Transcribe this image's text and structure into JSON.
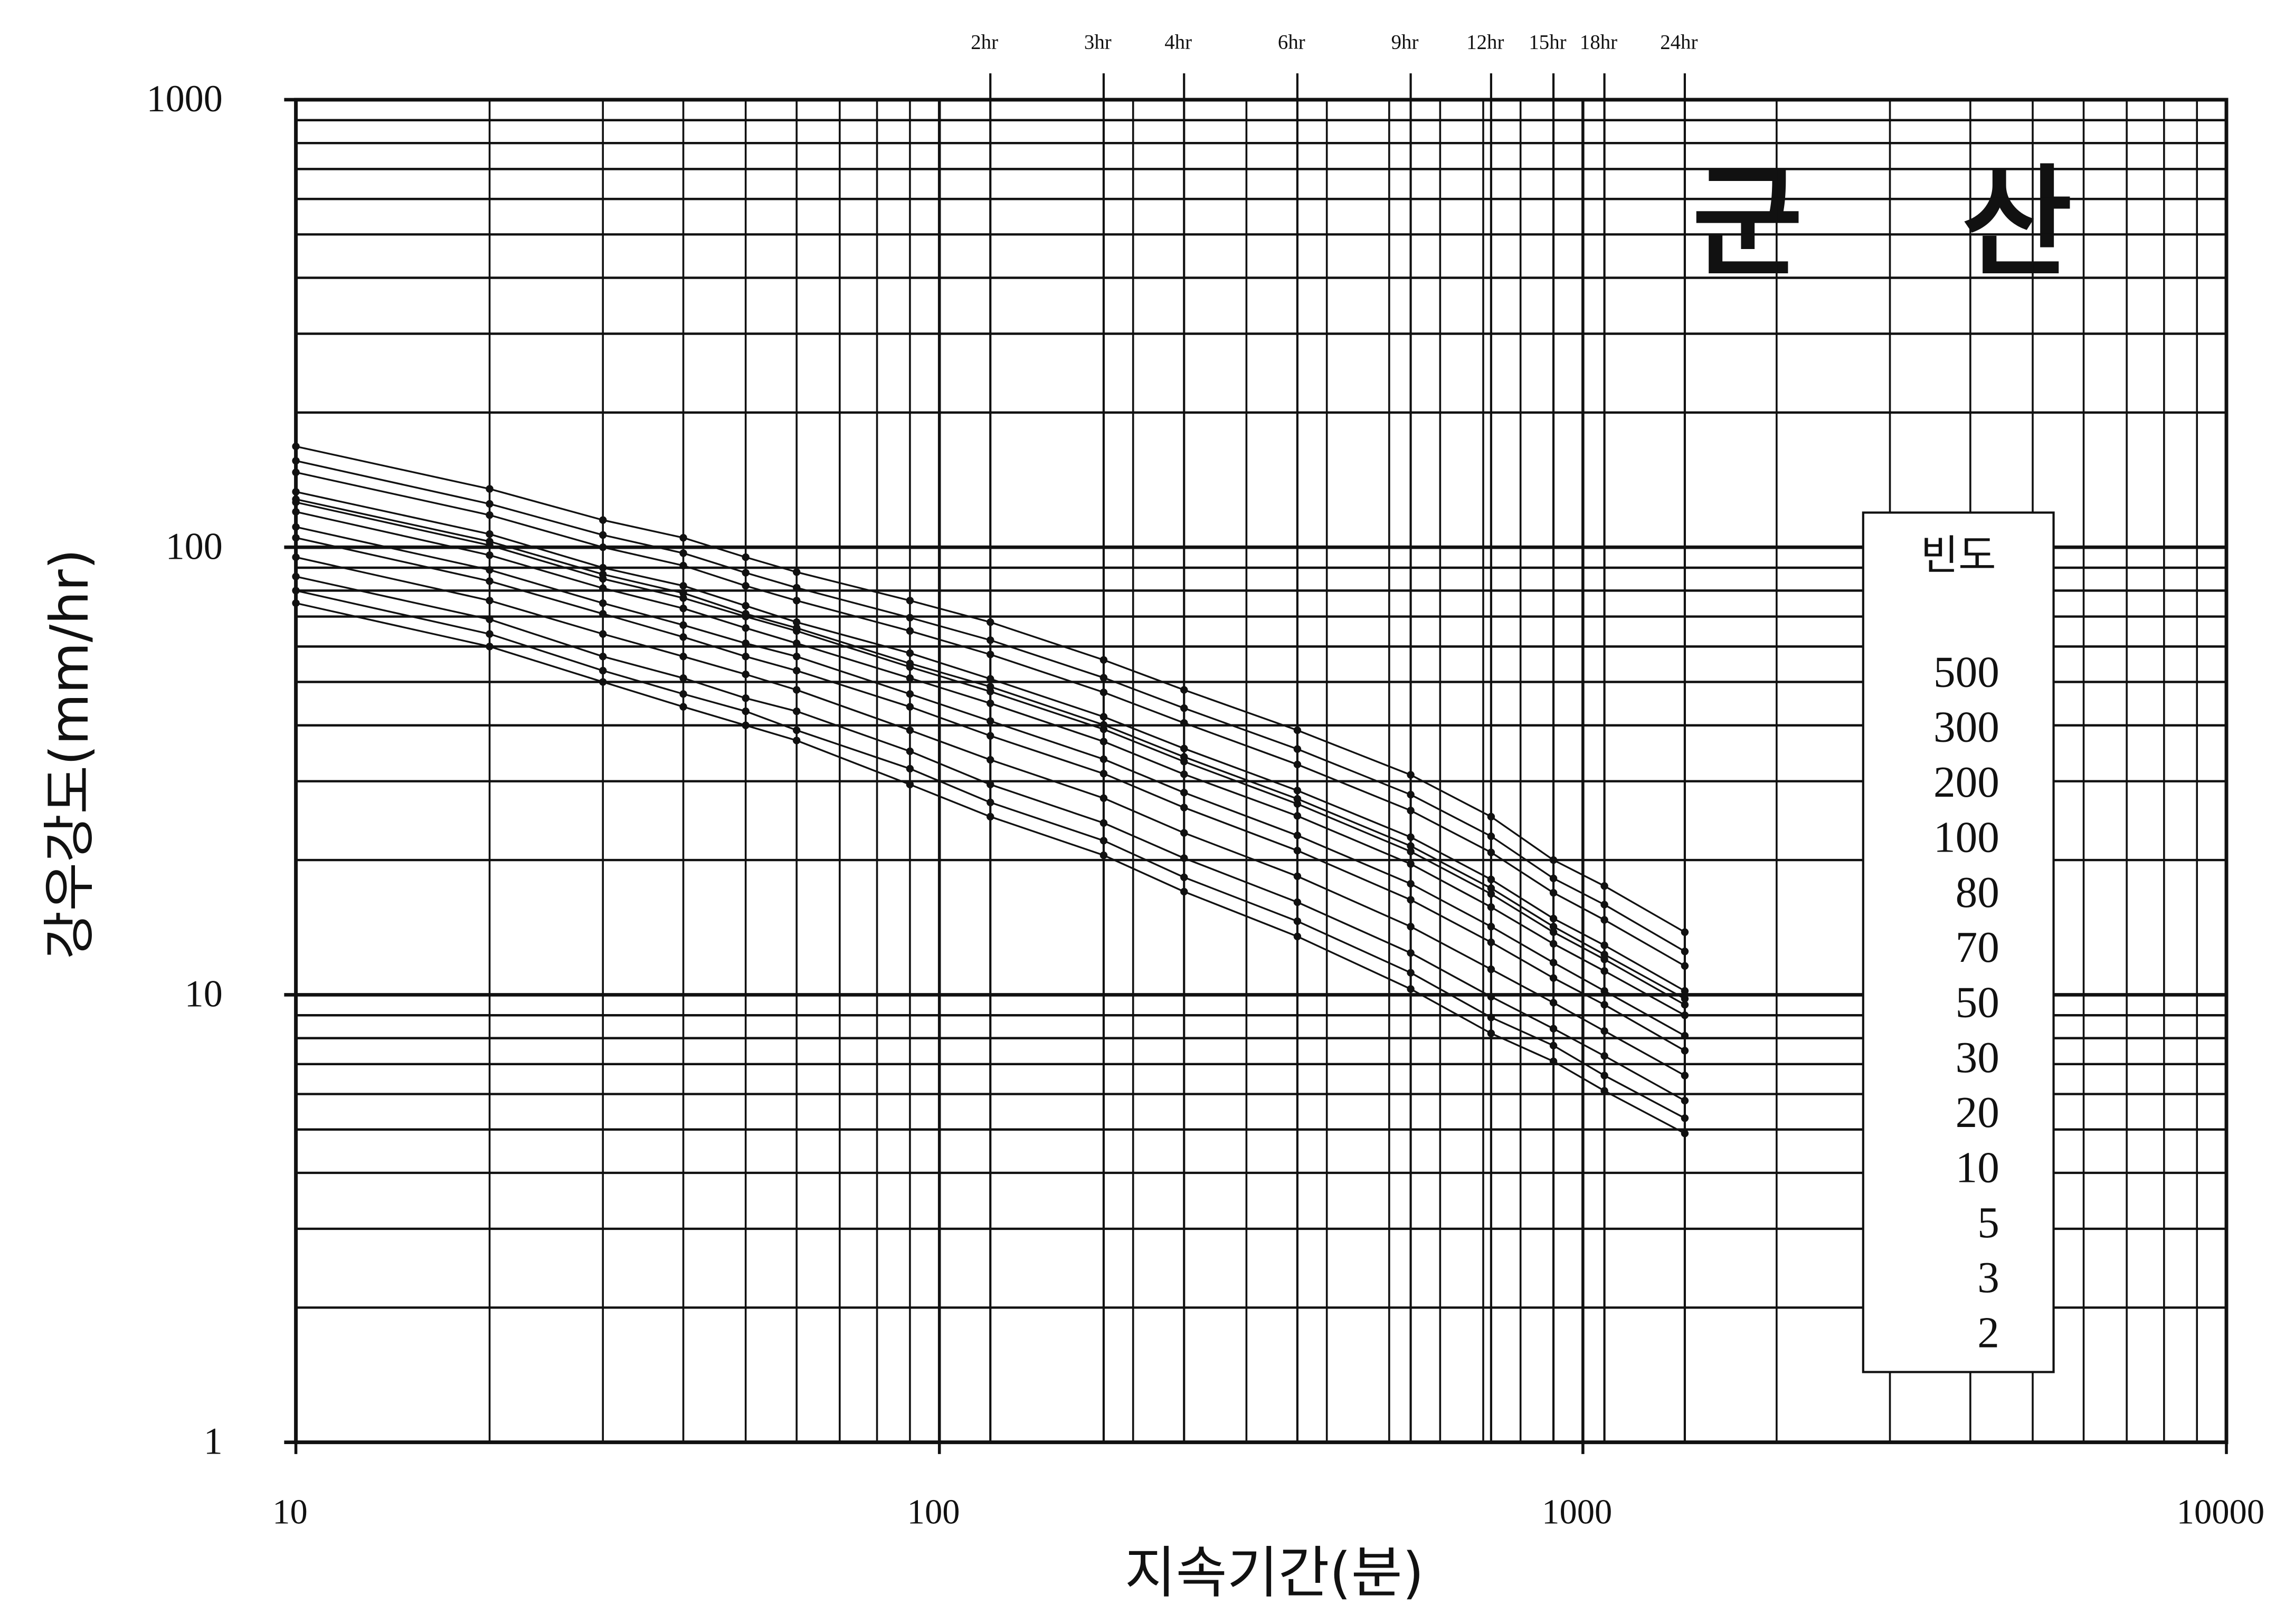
{
  "chart_data": {
    "type": "line",
    "title": "군 산",
    "x_label": "지속기간(분)",
    "y_label": "강우강도(mm/hr)",
    "legend_title": "빈도",
    "x": [
      10,
      20,
      30,
      40,
      50,
      60,
      90,
      120,
      180,
      240,
      360,
      540,
      720,
      900,
      1080,
      1440
    ],
    "xlim": [
      10,
      10000
    ],
    "ylim": [
      1,
      1000
    ],
    "xticks": [
      10,
      100,
      1000,
      10000
    ],
    "yticks": [
      1,
      10,
      100,
      1000
    ],
    "top_ticks": [
      {
        "value": 120,
        "label": "2hr"
      },
      {
        "value": 180,
        "label": "3hr"
      },
      {
        "value": 240,
        "label": "4hr"
      },
      {
        "value": 360,
        "label": "6hr"
      },
      {
        "value": 540,
        "label": "9hr"
      },
      {
        "value": 720,
        "label": "12hr"
      },
      {
        "value": 900,
        "label": "15hr"
      },
      {
        "value": 1080,
        "label": "18hr"
      },
      {
        "value": 1440,
        "label": "24hr"
      }
    ],
    "log_x": true,
    "log_y": true,
    "grid": true,
    "minor_grid": true,
    "legend": "right",
    "series": [
      {
        "name": "500",
        "color": "#111111",
        "values": [
          168,
          135,
          115,
          105,
          95,
          88,
          76,
          68,
          56,
          48,
          39,
          31,
          25,
          20,
          17.5,
          13.8
        ]
      },
      {
        "name": "300",
        "color": "#111111",
        "values": [
          156,
          125,
          106.5,
          97,
          87.7,
          81.2,
          69.6,
          62,
          51.1,
          43.7,
          35.4,
          28,
          22.6,
          18.2,
          15.9,
          12.5
        ]
      },
      {
        "name": "200",
        "color": "#111111",
        "values": [
          147,
          118,
          100,
          91,
          82,
          76,
          65,
          57.6,
          47.4,
          40.5,
          32.7,
          25.8,
          20.8,
          16.9,
          14.7,
          11.6
        ]
      },
      {
        "name": "100",
        "color": "#111111",
        "values": [
          133,
          107,
          90,
          82,
          74,
          68,
          58,
          50.8,
          41.8,
          35.5,
          28.6,
          22.5,
          18.1,
          14.8,
          12.9,
          10.2
        ]
      },
      {
        "name": "80",
        "color": "#111111",
        "values": [
          128,
          103,
          87,
          79,
          71,
          66,
          55,
          48.8,
          40.1,
          34,
          27.4,
          21.5,
          17.3,
          14.2,
          12.3,
          9.8
        ]
      },
      {
        "name": "70",
        "color": "#111111",
        "values": [
          126,
          101,
          85,
          77,
          70,
          65,
          54,
          47.6,
          39.2,
          33.2,
          26.7,
          20.9,
          16.8,
          13.8,
          12,
          9.5
        ]
      },
      {
        "name": "50",
        "color": "#111111",
        "values": [
          120,
          96,
          81,
          73,
          66,
          61,
          51,
          44.8,
          36.8,
          31.1,
          25.1,
          19.6,
          15.7,
          13,
          11.3,
          9
        ]
      },
      {
        "name": "30",
        "color": "#111111",
        "values": [
          111,
          89,
          75,
          67,
          61,
          57,
          47,
          40.9,
          33.6,
          28.3,
          22.7,
          17.7,
          14.2,
          11.8,
          10.2,
          8.1
        ]
      },
      {
        "name": "20",
        "color": "#111111",
        "values": [
          105,
          84,
          71,
          63,
          57,
          53,
          44,
          37.9,
          31.2,
          26.2,
          21,
          16.3,
          13.1,
          10.9,
          9.5,
          7.5
        ]
      },
      {
        "name": "10",
        "color": "#111111",
        "values": [
          95,
          76,
          64,
          57,
          52,
          48,
          39,
          33.5,
          27.5,
          23,
          18.4,
          14.2,
          11.4,
          9.6,
          8.3,
          6.6
        ]
      },
      {
        "name": "5",
        "color": "#111111",
        "values": [
          86,
          69,
          57,
          51,
          46,
          43,
          35,
          29.5,
          24.2,
          20.2,
          16.1,
          12.4,
          9.9,
          8.4,
          7.3,
          5.8
        ]
      },
      {
        "name": "3",
        "color": "#111111",
        "values": [
          80,
          64,
          53,
          47,
          43,
          39,
          32,
          26.9,
          22.1,
          18.3,
          14.6,
          11.2,
          8.9,
          7.7,
          6.6,
          5.3
        ]
      },
      {
        "name": "2",
        "color": "#111111",
        "values": [
          75,
          60,
          50,
          44,
          40,
          37,
          29.5,
          25,
          20.5,
          17,
          13.5,
          10.3,
          8.2,
          7.1,
          6.1,
          4.9
        ]
      }
    ]
  }
}
